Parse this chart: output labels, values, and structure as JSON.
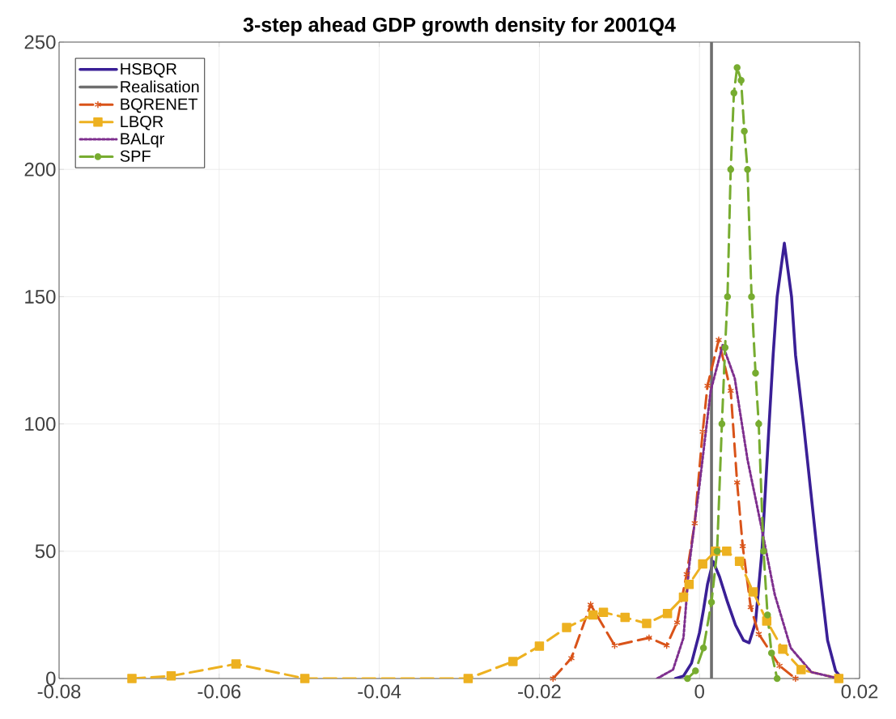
{
  "chart_data": {
    "type": "line",
    "title": "3-step ahead GDP growth density for 2001Q4",
    "xlim": [
      -0.08,
      0.02
    ],
    "xticks": [
      -0.08,
      -0.06,
      -0.04,
      -0.02,
      0,
      0.02
    ],
    "ylim": [
      0,
      250
    ],
    "yticks": [
      0,
      50,
      100,
      150,
      200,
      250
    ],
    "grid": true,
    "legend": "top left",
    "series": [
      {
        "name": "HSBQR",
        "color": "#3a1f96",
        "line_style": "solid",
        "marker": "none",
        "x": [
          -0.003,
          -0.002,
          -0.001,
          0,
          0.0005,
          0.001,
          0.0017,
          0.0025,
          0.0035,
          0.0045,
          0.0055,
          0.0062,
          0.007,
          0.0078,
          0.0087,
          0.0092,
          0.0097,
          0.0106,
          0.0115,
          0.012,
          0.013,
          0.0147,
          0.016,
          0.017,
          0.0178
        ],
        "values": [
          0,
          1,
          6,
          18,
          27,
          37,
          46,
          40,
          30,
          21,
          15,
          14,
          22,
          50,
          100,
          127,
          150,
          171,
          150,
          127,
          100,
          50,
          15,
          3,
          0
        ]
      },
      {
        "name": "Realisation",
        "color": "#6e6e6e",
        "line_style": "solid",
        "marker": "none",
        "x": [
          0.0015,
          0.0015
        ],
        "values": [
          0,
          250
        ]
      },
      {
        "name": "BQRENET",
        "color": "#d95319",
        "line_style": "dashed",
        "marker": "cross",
        "x": [
          -0.0183,
          -0.016,
          -0.0136,
          -0.0106,
          -0.0063,
          -0.0041,
          -0.0028,
          -0.0016,
          -0.0006,
          0.0004,
          0.001,
          0.0024,
          0.0039,
          0.0047,
          0.0054,
          0.0064,
          0.0074,
          0.01,
          0.012
        ],
        "values": [
          0,
          8,
          29,
          13,
          16,
          13,
          22,
          41,
          61,
          97,
          115,
          133,
          113,
          77,
          52,
          28,
          17.5,
          5,
          0
        ]
      },
      {
        "name": "LBQR",
        "color": "#edb120",
        "line_style": "dashed",
        "marker": "square",
        "x": [
          -0.0709,
          -0.066,
          -0.0579,
          -0.0493,
          -0.0289,
          -0.0233,
          -0.02,
          -0.0166,
          -0.0133,
          -0.012,
          -0.0093,
          -0.0066,
          -0.004,
          -0.002,
          -0.0013,
          0.0004,
          0.002,
          0.0034,
          0.005,
          0.0067,
          0.0084,
          0.0104,
          0.0127,
          0.0174
        ],
        "values": [
          0,
          1,
          5.7,
          0,
          0,
          6.7,
          12.7,
          20,
          25,
          26,
          24,
          21.6,
          25.5,
          32,
          37,
          45,
          50,
          50,
          46,
          34,
          22.6,
          11.5,
          3.5,
          0
        ]
      },
      {
        "name": "BALqr",
        "color": "#7e2f8e",
        "line_style": "dotted",
        "marker": "none",
        "x": [
          -0.0053,
          -0.0033,
          -0.002,
          -0.0013,
          0,
          0.0014,
          0.0029,
          0.0044,
          0.006,
          0.0077,
          0.0094,
          0.0114,
          0.014,
          0.0174
        ],
        "values": [
          0,
          3.5,
          16,
          44,
          76,
          113,
          131,
          118,
          86,
          60,
          33,
          12,
          2.5,
          0
        ]
      },
      {
        "name": "SPF",
        "color": "#77ac30",
        "line_style": "dashed",
        "marker": "circle",
        "x": [
          -0.0015,
          -0.0005,
          0.0005,
          0.0015,
          0.0022,
          0.0028,
          0.0032,
          0.0035,
          0.0039,
          0.0043,
          0.0047,
          0.0052,
          0.0056,
          0.006,
          0.0065,
          0.007,
          0.0074,
          0.008,
          0.0085,
          0.009,
          0.0097
        ],
        "values": [
          0,
          3,
          12,
          30,
          50,
          100,
          130,
          150,
          200,
          230,
          240,
          235,
          215,
          200,
          150,
          120,
          100,
          50,
          25,
          10,
          0
        ]
      }
    ]
  }
}
